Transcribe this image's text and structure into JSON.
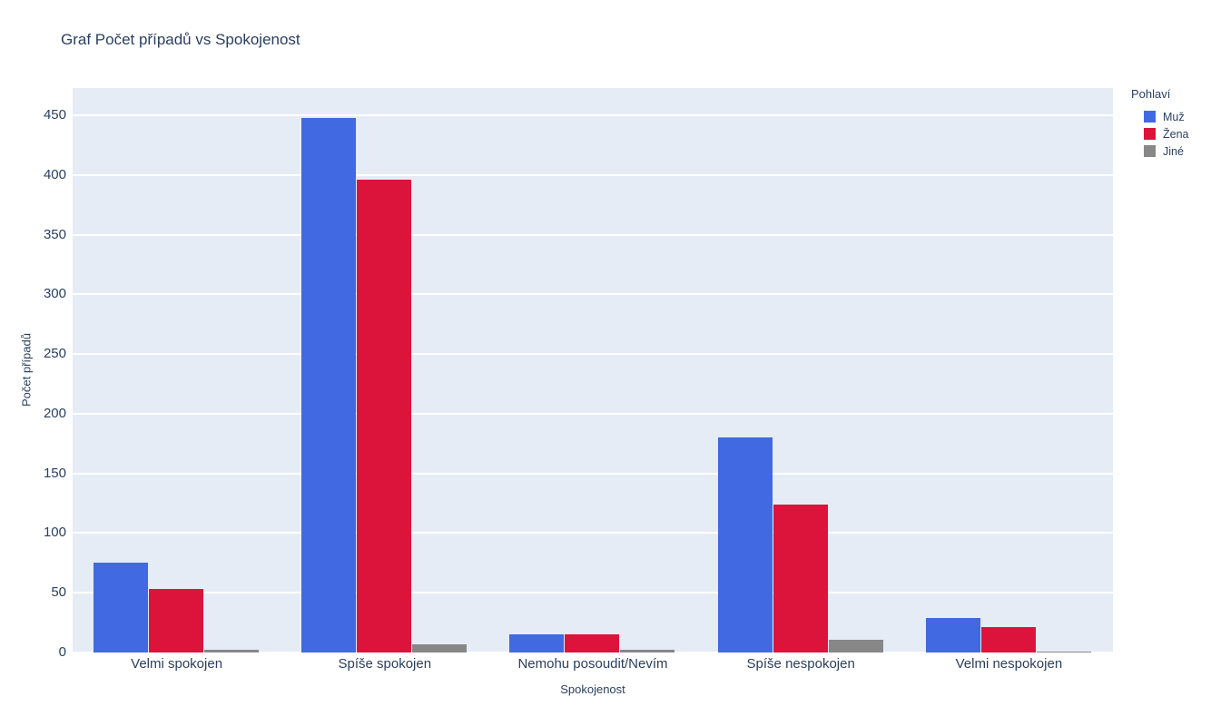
{
  "chart_data": {
    "type": "bar",
    "title": "Graf Počet případů vs Spokojenost",
    "xlabel": "Spokojenost",
    "ylabel": "Počet případů",
    "legend_title": "Pohlaví",
    "categories": [
      "Velmi spokojen",
      "Spíše spokojen",
      "Nemohu posoudit/Nevím",
      "Spíše nespokojen",
      "Velmi nespokojen"
    ],
    "series": [
      {
        "name": "Muž",
        "color": "#4169e1",
        "values": [
          75,
          448,
          15,
          180,
          29
        ]
      },
      {
        "name": "Žena",
        "color": "#dc143c",
        "values": [
          53,
          396,
          15,
          124,
          21
        ]
      },
      {
        "name": "Jiné",
        "color": "#878787",
        "values": [
          2,
          7,
          2,
          11,
          1
        ]
      }
    ],
    "ylim": [
      0,
      473
    ],
    "yticks": [
      0,
      50,
      100,
      150,
      200,
      250,
      300,
      350,
      400,
      450
    ],
    "grid": true,
    "legend_position": "top-right",
    "barmode": "group",
    "plot_bg": "#e5ecf6",
    "page_bg": "#ffffff",
    "grid_color": "#ffffff",
    "text_color": "#2a3f5f"
  }
}
